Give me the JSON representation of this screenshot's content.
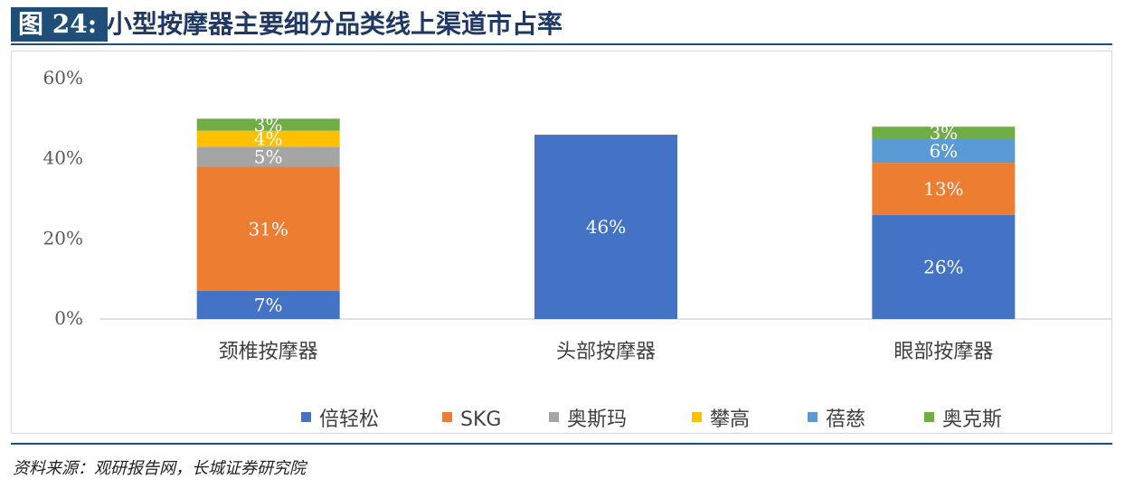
{
  "header": {
    "figure_no": "图 24:",
    "title": "小型按摩器主要细分品类线上渠道市占率"
  },
  "source": "资料来源：观研报告网，长城证券研究院",
  "colors": {
    "倍轻松": "#4472c4",
    "SKG": "#ed7d31",
    "奥斯玛": "#a5a5a5",
    "攀高": "#ffc000",
    "蓓慈": "#5b9bd5",
    "奥克斯": "#70ad47"
  },
  "chart_data": {
    "type": "bar",
    "stacked": true,
    "categories": [
      "颈椎按摩器",
      "头部按摩器",
      "眼部按摩器"
    ],
    "ylim": [
      0,
      60
    ],
    "yticks": [
      "0%",
      "20%",
      "40%",
      "60%"
    ],
    "series": [
      {
        "name": "倍轻松",
        "values": [
          7,
          46,
          26
        ],
        "labels": [
          "7%",
          "46%",
          "26%"
        ]
      },
      {
        "name": "SKG",
        "values": [
          31,
          0,
          13
        ],
        "labels": [
          "31%",
          "",
          "13%"
        ]
      },
      {
        "name": "奥斯玛",
        "values": [
          5,
          0,
          0
        ],
        "labels": [
          "5%",
          "",
          ""
        ]
      },
      {
        "name": "攀高",
        "values": [
          4,
          0,
          0
        ],
        "labels": [
          "4%",
          "",
          ""
        ]
      },
      {
        "name": "蓓慈",
        "values": [
          0,
          0,
          6
        ],
        "labels": [
          "",
          "",
          "6%"
        ]
      },
      {
        "name": "奥克斯",
        "values": [
          3,
          0,
          3
        ],
        "labels": [
          "3%",
          "",
          "3%"
        ]
      }
    ],
    "legend": "bottom",
    "grid": false
  }
}
